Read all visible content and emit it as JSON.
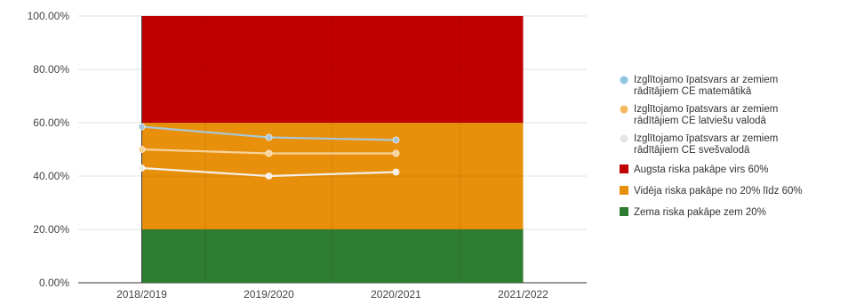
{
  "chart_data": {
    "type": "line",
    "categories": [
      "2018/2019",
      "2019/2020",
      "2020/2021",
      "2021/2022"
    ],
    "y_format": "percent_2dp",
    "ylim": [
      0,
      100
    ],
    "yticks": [
      0,
      20,
      40,
      60,
      80,
      100
    ],
    "ytick_labels": [
      "0.00%",
      "20.00%",
      "40.00%",
      "60.00%",
      "80.00%",
      "100.00%"
    ],
    "bands": [
      {
        "name": "Zema riska pakāpe zem 20%",
        "from": 0,
        "to": 20,
        "color": "#2e7d32"
      },
      {
        "name": "Vidēja riska pakāpe no 20% līdz 60%",
        "from": 20,
        "to": 60,
        "color": "#e8900c"
      },
      {
        "name": "Augsta riska pakāpe virs 60%",
        "from": 60,
        "to": 100,
        "color": "#c00000"
      }
    ],
    "band_categories": [
      "2018/2019",
      "2019/2020",
      "2020/2021"
    ],
    "series": [
      {
        "name_lines": [
          "Izglītojamo īpatsvars ar zemiem",
          "rādītājiem CE matemātikā"
        ],
        "color": "#a9c6d8",
        "legend_color": "#8fc1e3",
        "values": [
          58.5,
          54.5,
          53.5,
          null
        ]
      },
      {
        "name_lines": [
          "Izglītojamo īpatsvars ar zemiem",
          "rādītājiem CE latviešu valodā"
        ],
        "color": "#f7d19a",
        "legend_color": "#f7b85e",
        "values": [
          50,
          48.5,
          48.5,
          null
        ]
      },
      {
        "name_lines": [
          "Izglītojamo īpatsvars ar zemiem",
          "rādītājiem CE svešvalodā"
        ],
        "color": "#f3efe8",
        "legend_color": "#e6e6e6",
        "values": [
          43,
          40,
          41.5,
          null
        ]
      }
    ],
    "legend_position": "right",
    "grid": true
  }
}
